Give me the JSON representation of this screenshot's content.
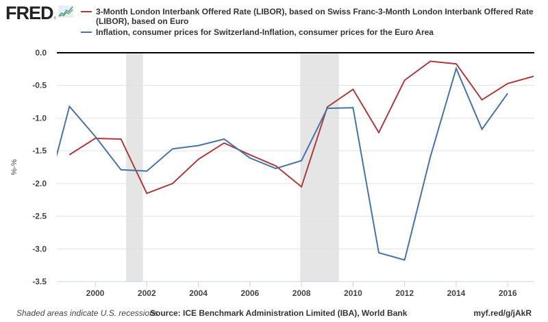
{
  "header": {
    "logo_text": "FRED",
    "logo_reg": "®",
    "logo_icon": "fred-chart-icon"
  },
  "legend": [
    {
      "label": "3-Month London Interbank Offered Rate (LIBOR), based on Swiss Franc-3-Month London Interbank Offered Rate (LIBOR), based on Euro",
      "color": "#aa3a3a"
    },
    {
      "label": "Inflation, consumer prices for Switzerland-Inflation, consumer prices for the Euro Area",
      "color": "#4572a7"
    }
  ],
  "footer": {
    "recession_note": "Shaded areas indicate U.S. recessions",
    "source": "Source: ICE Benchmark Administration Limited (IBA), World Bank",
    "short_url": "myf.red/g/jAkR"
  },
  "chart_data": {
    "type": "line",
    "title": "",
    "xlabel": "",
    "ylabel": "%-%",
    "ylim": [
      -3.5,
      0.0
    ],
    "xlim": [
      1998.5,
      2017.0
    ],
    "grid": true,
    "legend_position": "top",
    "y_ticks": [
      "0.0",
      "-0.5",
      "-1.0",
      "-1.5",
      "-2.0",
      "-2.5",
      "-3.0",
      "-3.5"
    ],
    "x_ticks": [
      "2000",
      "2002",
      "2004",
      "2006",
      "2008",
      "2010",
      "2012",
      "2014",
      "2016"
    ],
    "recessions": [
      [
        2001.2,
        2001.85
      ],
      [
        2007.95,
        2009.45
      ]
    ],
    "series": [
      {
        "name": "3-Month London Interbank Offered Rate (LIBOR), based on Swiss Franc-3-Month London Interbank Offered Rate (LIBOR), based on Euro",
        "color": "#aa3a3a",
        "x": [
          1999,
          2000,
          2001,
          2002,
          2003,
          2004,
          2005,
          2006,
          2007,
          2008,
          2009,
          2010,
          2011,
          2012,
          2013,
          2014,
          2015,
          2016,
          2017
        ],
        "values": [
          -1.56,
          -1.31,
          -1.32,
          -2.15,
          -2.0,
          -1.63,
          -1.38,
          -1.56,
          -1.73,
          -2.05,
          -0.83,
          -0.56,
          -1.22,
          -0.42,
          -0.13,
          -0.17,
          -0.72,
          -0.47,
          -0.36
        ]
      },
      {
        "name": "Inflation, consumer prices for Switzerland-Inflation, consumer prices for the Euro Area",
        "color": "#4572a7",
        "x": [
          1998,
          1999,
          2000,
          2001,
          2002,
          2003,
          2004,
          2005,
          2006,
          2007,
          2008,
          2009,
          2010,
          2011,
          2012,
          2013,
          2014,
          2015,
          2016
        ],
        "values": [
          -2.33,
          -0.82,
          -1.28,
          -1.79,
          -1.81,
          -1.47,
          -1.42,
          -1.32,
          -1.61,
          -1.77,
          -1.65,
          -0.85,
          -0.84,
          -3.06,
          -3.17,
          -1.59,
          -0.24,
          -1.17,
          -0.62
        ]
      }
    ]
  }
}
